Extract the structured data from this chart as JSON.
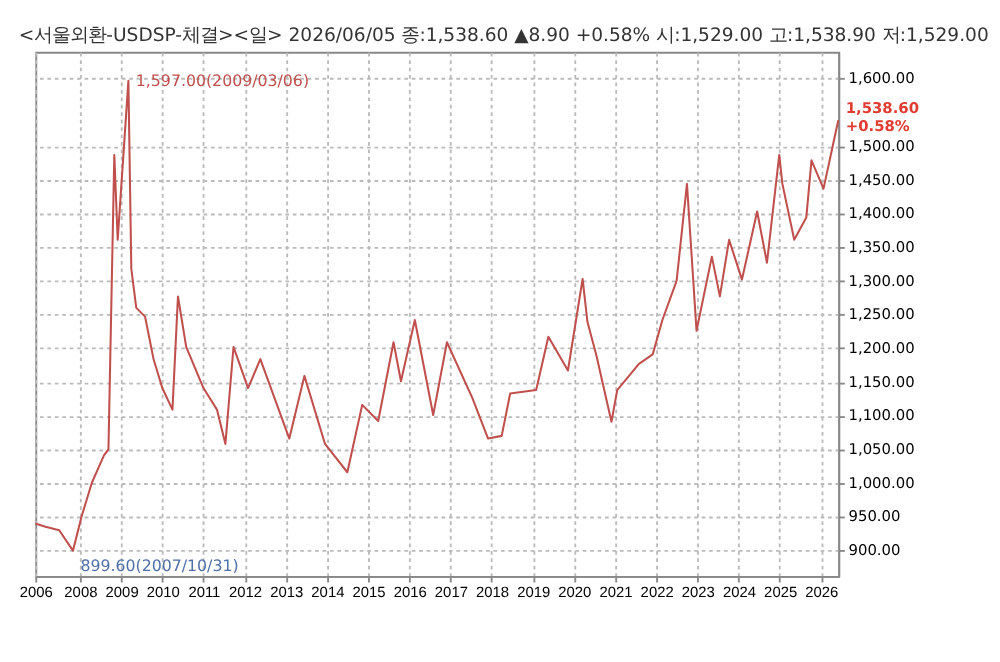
{
  "chart_data": {
    "type": "line",
    "title": "<서울외환-USDSP-체결><일> 2026/06/05 종:1,538.60 ▲8.90 +0.58% 시:1,529.00 고:1,538.90 저:1,529.00",
    "x": [
      "2006-12-01",
      "2007-03-01",
      "2007-07-01",
      "2007-10-31",
      "2008-01-15",
      "2008-04-15",
      "2008-08-01",
      "2008-09-10",
      "2008-11-01",
      "2008-12-01",
      "2009-03-06",
      "2009-04-01",
      "2009-05-15",
      "2009-08-01",
      "2009-10-15",
      "2010-01-01",
      "2010-04-01",
      "2010-05-20",
      "2010-08-01",
      "2011-01-01",
      "2011-05-01",
      "2011-07-15",
      "2011-09-25",
      "2012-02-01",
      "2012-05-20",
      "2013-02-01",
      "2013-06-15",
      "2013-12-15",
      "2014-07-01",
      "2014-11-10",
      "2015-04-01",
      "2015-08-15",
      "2015-10-20",
      "2016-02-20",
      "2016-08-01",
      "2016-12-01",
      "2017-07-15",
      "2017-12-01",
      "2018-04-01",
      "2018-06-15",
      "2019-02-01",
      "2019-05-20",
      "2019-11-10",
      "2020-03-19",
      "2020-05-01",
      "2020-07-20",
      "2020-11-30",
      "2021-01-20",
      "2021-08-01",
      "2021-12-01",
      "2022-02-25",
      "2022-07-01",
      "2022-10-01",
      "2022-12-25",
      "2023-05-10",
      "2023-07-20",
      "2023-10-10",
      "2024-02-01",
      "2024-06-15",
      "2024-09-10",
      "2024-12-28",
      "2025-01-25",
      "2025-05-10",
      "2025-08-25",
      "2025-10-10",
      "2026-01-25",
      "2026-06-05"
    ],
    "series": [
      {
        "color": "#c0504d",
        "values": [
          940,
          935,
          930,
          899.6,
          950,
          1000,
          1041,
          1050,
          1487,
          1361,
          1597,
          1318,
          1260,
          1247,
          1184,
          1141,
          1109,
          1277,
          1202,
          1141,
          1109,
          1058,
          1202,
          1141,
          1184,
          1066,
          1159,
          1058,
          1016,
          1116,
          1092,
          1209,
          1151,
          1242,
          1101,
          1209,
          1126,
          1066,
          1070,
          1133,
          1138,
          1217,
          1167,
          1303,
          1239,
          1189,
          1091,
          1138,
          1177,
          1191,
          1242,
          1300,
          1444,
          1226,
          1336,
          1277,
          1361,
          1302,
          1403,
          1327,
          1487,
          1444,
          1361,
          1394,
          1479,
          1437,
          1538.6
        ]
      }
    ],
    "xlim": [
      "2006-12-01",
      "2026-06-05"
    ],
    "xticks": [
      {
        "value": "2006-12-01",
        "label": "2006"
      },
      {
        "value": "2008-01-01",
        "label": "2008"
      },
      {
        "value": "2009-01-01",
        "label": "2009"
      },
      {
        "value": "2010-01-01",
        "label": "2010"
      },
      {
        "value": "2011-01-01",
        "label": "2011"
      },
      {
        "value": "2012-01-01",
        "label": "2012"
      },
      {
        "value": "2013-01-01",
        "label": "2013"
      },
      {
        "value": "2014-01-01",
        "label": "2014"
      },
      {
        "value": "2015-01-01",
        "label": "2015"
      },
      {
        "value": "2016-01-01",
        "label": "2016"
      },
      {
        "value": "2017-01-01",
        "label": "2017"
      },
      {
        "value": "2018-01-01",
        "label": "2018"
      },
      {
        "value": "2019-01-01",
        "label": "2019"
      },
      {
        "value": "2020-01-01",
        "label": "2020"
      },
      {
        "value": "2021-01-01",
        "label": "2021"
      },
      {
        "value": "2022-01-01",
        "label": "2022"
      },
      {
        "value": "2023-01-01",
        "label": "2023"
      },
      {
        "value": "2024-01-01",
        "label": "2024"
      },
      {
        "value": "2025-01-01",
        "label": "2025"
      },
      {
        "value": "2026-01-01",
        "label": "2026"
      }
    ],
    "ylim": [
      862,
      1640
    ],
    "yticks": [
      {
        "value": 900,
        "label": "900.00"
      },
      {
        "value": 950,
        "label": "950.00"
      },
      {
        "value": 1000,
        "label": "1,000.00"
      },
      {
        "value": 1050,
        "label": "1,050.00"
      },
      {
        "value": 1100,
        "label": "1,100.00"
      },
      {
        "value": 1150,
        "label": "1,150.00"
      },
      {
        "value": 1200,
        "label": "1,200.00"
      },
      {
        "value": 1250,
        "label": "1,250.00"
      },
      {
        "value": 1300,
        "label": "1,300.00"
      },
      {
        "value": 1350,
        "label": "1,350.00"
      },
      {
        "value": 1400,
        "label": "1,400.00"
      },
      {
        "value": 1450,
        "label": "1,450.00"
      },
      {
        "value": 1500,
        "label": "1,500.00"
      },
      {
        "value": 1600,
        "label": "1,600.00"
      }
    ],
    "annotations": [
      {
        "text": "1,597.00(2009/03/06)",
        "x": "2009-03-06",
        "y": 1597
      },
      {
        "text": "899.60(2007/10/31)",
        "x": "2007-10-31",
        "y": 899.6
      },
      {
        "text": "1,538.60 +0.58%",
        "x": "2026-06-05",
        "y": 1538.6
      }
    ],
    "grid": true,
    "line_style": "solid",
    "marker": "none",
    "legend": false
  }
}
